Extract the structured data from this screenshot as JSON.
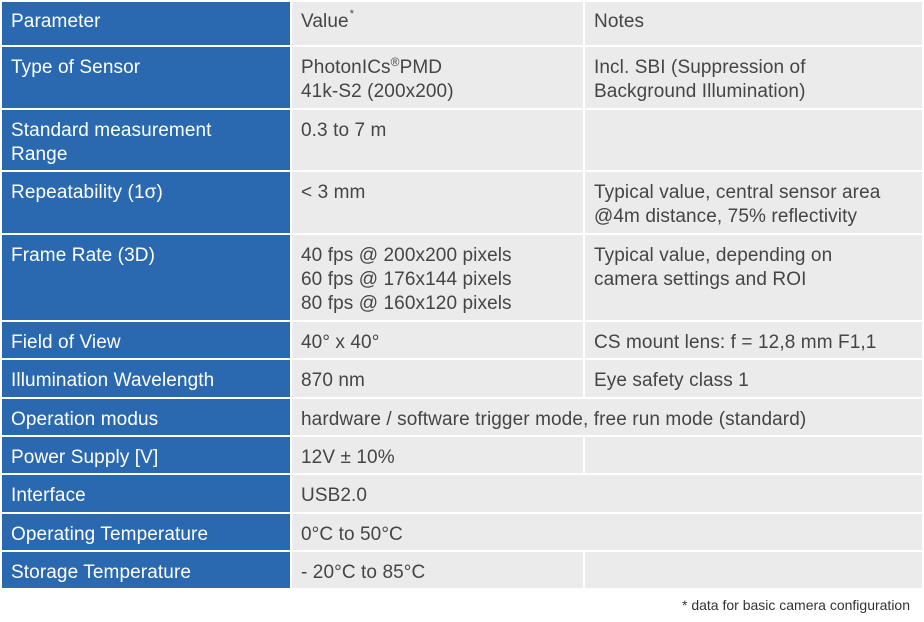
{
  "header": {
    "parameter": "Parameter",
    "value": "Value",
    "value_mark": "*",
    "notes": "Notes"
  },
  "rows": [
    {
      "param": "Type of Sensor",
      "value_a": "PhotonICs",
      "value_reg": "®",
      "value_b": "PMD",
      "value_line2": "41k-S2 (200x200)",
      "note_line1": "Incl. SBI (Suppression of",
      "note_line2": "Background Illumination)"
    },
    {
      "param_line1": "Standard measurement",
      "param_line2": "Range",
      "value": "0.3 to 7 m",
      "note": ""
    },
    {
      "param": "Repeatability (1σ)",
      "value": "< 3 mm",
      "note_line1": "Typical value, central sensor area",
      "note_line2": "@4m distance, 75% reflectivity"
    },
    {
      "param": "Frame Rate (3D)",
      "value_line1": "40 fps @ 200x200 pixels",
      "value_line2": "60 fps @ 176x144 pixels",
      "value_line3": "80 fps @ 160x120 pixels",
      "note_line1": "Typical value, depending on",
      "note_line2": "camera settings and ROI"
    },
    {
      "param": "Field of View",
      "value": "40° x 40°",
      "note": "CS mount lens: f = 12,8 mm F1,1"
    },
    {
      "param": "Illumination Wavelength",
      "value": "870 nm",
      "note": "Eye safety class 1"
    },
    {
      "param": "Operation modus",
      "value": "hardware / software trigger mode, free run mode (standard)"
    },
    {
      "param": "Power Supply [V]",
      "value": "12V ± 10%",
      "note": ""
    },
    {
      "param": "Interface",
      "value": "USB2.0"
    },
    {
      "param": "Operating Temperature",
      "value": "0°C to 50°C"
    },
    {
      "param": "Storage Temperature",
      "value": "- 20°C to 85°C",
      "note": ""
    }
  ],
  "footnote": "* data for basic camera configuration",
  "colors": {
    "header_column": "#2a69b0",
    "cell_background": "#ebebeb",
    "cell_text": "#454545"
  }
}
